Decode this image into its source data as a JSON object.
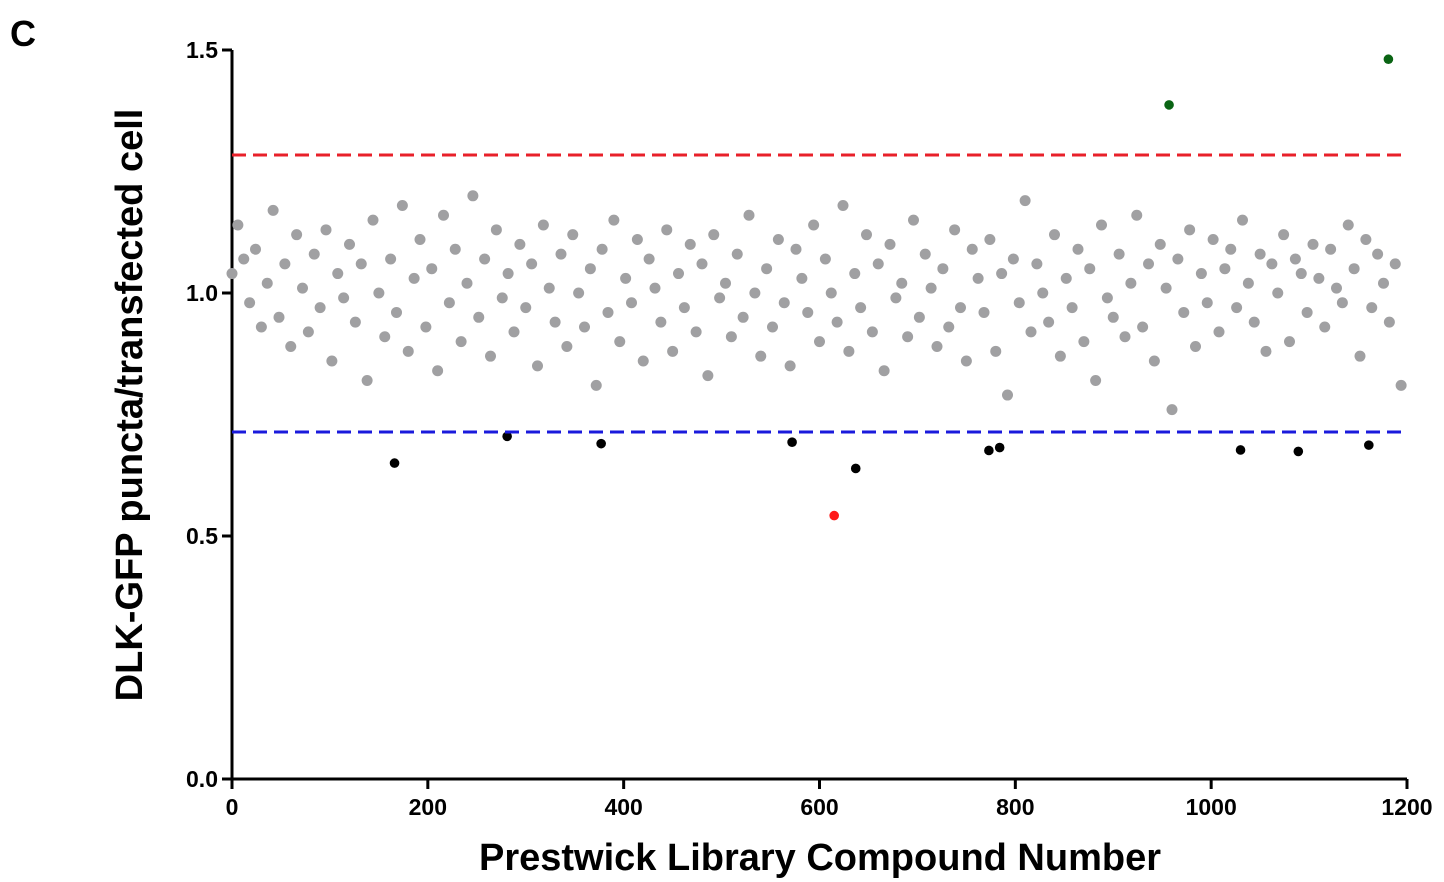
{
  "chart_data": {
    "type": "scatter",
    "panel_label": "C",
    "x_label": "Prestwick Library Compound Number",
    "y_label": "DLK-GFP puncta/transfected cell",
    "xlim": [
      0,
      1200
    ],
    "xticks": [
      0,
      200,
      400,
      600,
      800,
      1000,
      1200
    ],
    "ylim": [
      0,
      1.5
    ],
    "yticks": [
      {
        "value": 0,
        "label": "0.0"
      },
      {
        "value": 0.5,
        "label": "0.5"
      },
      {
        "value": 1,
        "label": "1.0"
      },
      {
        "value": 1.5,
        "label": "1.5"
      }
    ],
    "hlines": [
      {
        "value": 1.284,
        "color": "#e8202a"
      },
      {
        "value": 0.714,
        "color": "#1a1adc"
      }
    ],
    "series": [
      {
        "color": "#a0a0a2",
        "x": [
          0,
          6,
          12,
          18,
          24,
          30,
          36,
          42,
          48,
          54,
          60,
          66,
          72,
          78,
          84,
          90,
          96,
          102,
          108,
          114,
          120,
          126,
          132,
          138,
          144,
          150,
          156,
          162,
          168,
          174,
          180,
          186,
          192,
          198,
          204,
          210,
          216,
          222,
          228,
          234,
          240,
          246,
          252,
          258,
          264,
          270,
          276,
          282,
          288,
          294,
          300,
          306,
          312,
          318,
          324,
          330,
          336,
          342,
          348,
          354,
          360,
          366,
          372,
          378,
          384,
          390,
          396,
          402,
          408,
          414,
          420,
          426,
          432,
          438,
          444,
          450,
          456,
          462,
          468,
          474,
          480,
          486,
          492,
          498,
          504,
          510,
          516,
          522,
          528,
          534,
          540,
          546,
          552,
          558,
          564,
          570,
          576,
          582,
          588,
          594,
          600,
          606,
          612,
          618,
          624,
          630,
          636,
          642,
          648,
          654,
          660,
          666,
          672,
          678,
          684,
          690,
          696,
          702,
          708,
          714,
          720,
          726,
          732,
          738,
          744,
          750,
          756,
          762,
          768,
          774,
          780,
          786,
          792,
          798,
          804,
          810,
          816,
          822,
          828,
          834,
          840,
          846,
          852,
          858,
          864,
          870,
          876,
          882,
          888,
          894,
          900,
          906,
          912,
          918,
          924,
          930,
          936,
          942,
          948,
          954,
          960,
          966,
          972,
          978,
          984,
          990,
          996,
          1002,
          1008,
          1014,
          1020,
          1026,
          1032,
          1038,
          1044,
          1050,
          1056,
          1062,
          1068,
          1074,
          1080,
          1086,
          1092,
          1098,
          1104,
          1110,
          1116,
          1122,
          1128,
          1134,
          1140,
          1146,
          1152,
          1158,
          1164,
          1170,
          1176,
          1182,
          1188,
          1194
        ],
        "values": [
          1.04,
          1.14,
          1.07,
          0.98,
          1.09,
          0.93,
          1.02,
          1.17,
          0.95,
          1.06,
          0.89,
          1.12,
          1.01,
          0.92,
          1.08,
          0.97,
          1.13,
          0.86,
          1.04,
          0.99,
          1.1,
          0.94,
          1.06,
          0.82,
          1.15,
          1.0,
          0.91,
          1.07,
          0.96,
          1.18,
          0.88,
          1.03,
          1.11,
          0.93,
          1.05,
          0.84,
          1.16,
          0.98,
          1.09,
          0.9,
          1.02,
          1.2,
          0.95,
          1.07,
          0.87,
          1.13,
          0.99,
          1.04,
          0.92,
          1.1,
          0.97,
          1.06,
          0.85,
          1.14,
          1.01,
          0.94,
          1.08,
          0.89,
          1.12,
          1.0,
          0.93,
          1.05,
          0.81,
          1.09,
          0.96,
          1.15,
          0.9,
          1.03,
          0.98,
          1.11,
          0.86,
          1.07,
          1.01,
          0.94,
          1.13,
          0.88,
          1.04,
          0.97,
          1.1,
          0.92,
          1.06,
          0.83,
          1.12,
          0.99,
          1.02,
          0.91,
          1.08,
          0.95,
          1.16,
          1.0,
          0.87,
          1.05,
          0.93,
          1.11,
          0.98,
          0.85,
          1.09,
          1.03,
          0.96,
          1.14,
          0.9,
          1.07,
          1.0,
          0.94,
          1.18,
          0.88,
          1.04,
          0.97,
          1.12,
          0.92,
          1.06,
          0.84,
          1.1,
          0.99,
          1.02,
          0.91,
          1.15,
          0.95,
          1.08,
          1.01,
          0.89,
          1.05,
          0.93,
          1.13,
          0.97,
          0.86,
          1.09,
          1.03,
          0.96,
          1.11,
          0.88,
          1.04,
          0.79,
          1.07,
          0.98,
          1.19,
          0.92,
          1.06,
          1.0,
          0.94,
          1.12,
          0.87,
          1.03,
          0.97,
          1.09,
          0.9,
          1.05,
          0.82,
          1.14,
          0.99,
          0.95,
          1.08,
          0.91,
          1.02,
          1.16,
          0.93,
          1.06,
          0.86,
          1.1,
          1.01,
          0.76,
          1.07,
          0.96,
          1.13,
          0.89,
          1.04,
          0.98,
          1.11,
          0.92,
          1.05,
          1.09,
          0.97,
          1.15,
          1.02,
          0.94,
          1.08,
          0.88,
          1.06,
          1.0,
          1.12,
          0.9,
          1.07,
          1.04,
          0.96,
          1.1,
          1.03,
          0.93,
          1.09,
          1.01,
          0.98,
          1.14,
          1.05,
          0.87,
          1.11,
          0.97,
          1.08,
          1.02,
          0.94,
          1.06,
          0.81
        ]
      },
      {
        "color": "#000000",
        "x": [
          166,
          281,
          377,
          572,
          637,
          773,
          784,
          1030,
          1089,
          1161
        ],
        "values": [
          0.65,
          0.705,
          0.69,
          0.693,
          0.639,
          0.676,
          0.682,
          0.677,
          0.674,
          0.687
        ]
      },
      {
        "color": "#ff1a1a",
        "x": [
          615
        ],
        "values": [
          0.542
        ]
      },
      {
        "color": "#0a6414",
        "x": [
          957,
          1181
        ],
        "values": [
          1.387,
          1.481
        ]
      }
    ]
  }
}
